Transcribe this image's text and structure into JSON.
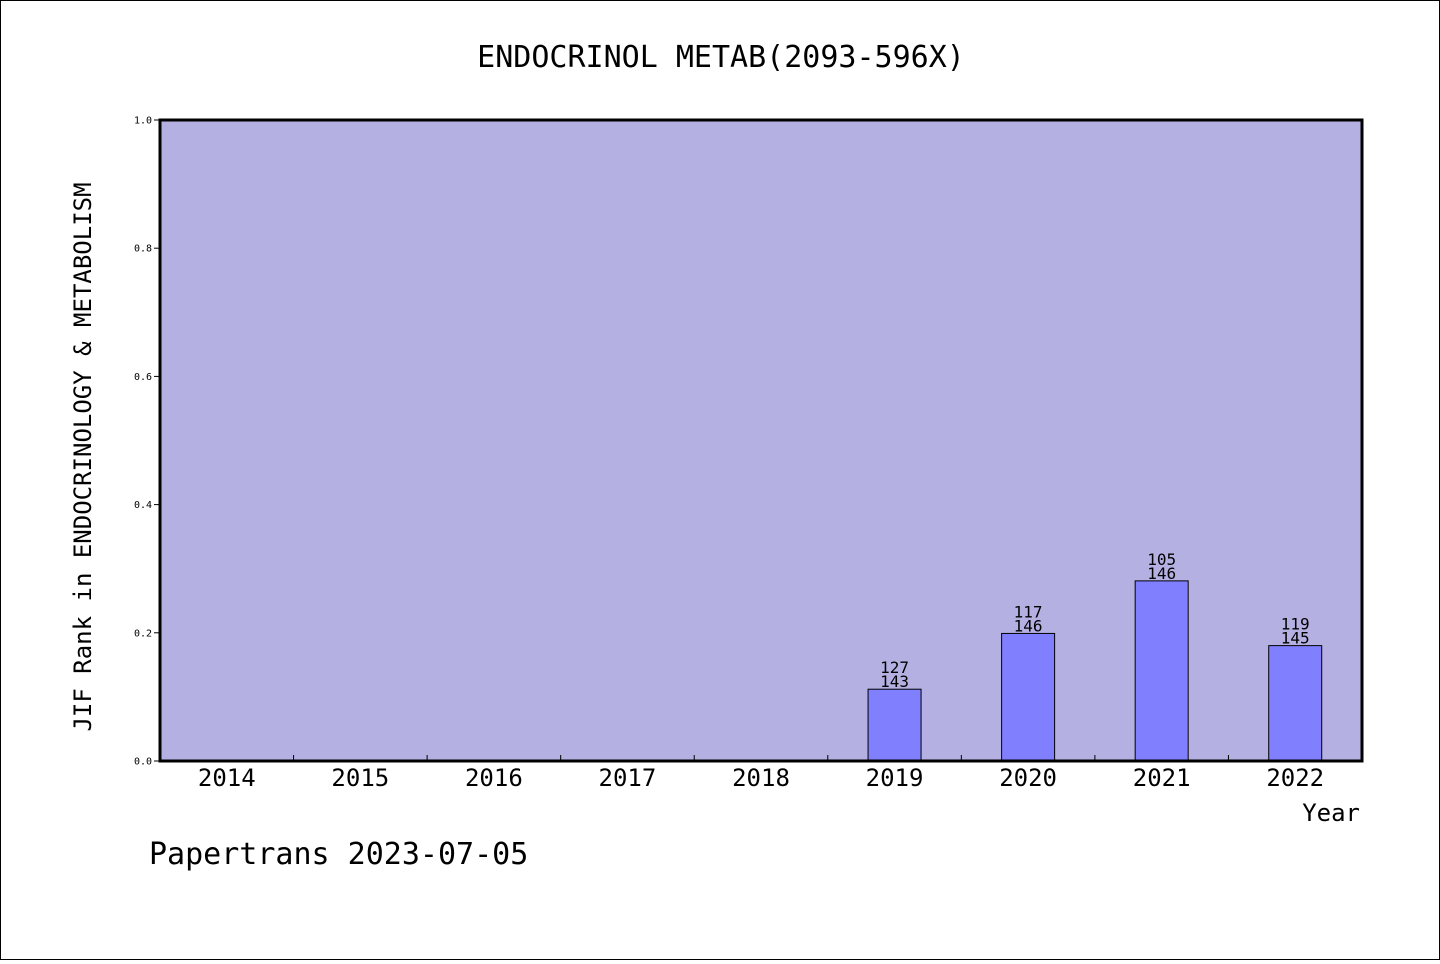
{
  "chart_data": {
    "type": "bar",
    "title": "ENDOCRINOL METAB(2093-596X)",
    "xlabel": "Year",
    "ylabel": "JIF Rank in ENDOCRINOLOGY & METABOLISM",
    "categories": [
      "2014",
      "2015",
      "2016",
      "2017",
      "2018",
      "2019",
      "2020",
      "2021",
      "2022"
    ],
    "values": [
      null,
      null,
      null,
      null,
      null,
      0.112,
      0.199,
      0.281,
      0.18
    ],
    "bar_labels": [
      null,
      null,
      null,
      null,
      null,
      {
        "rank": "127",
        "total": "143"
      },
      {
        "rank": "117",
        "total": "146"
      },
      {
        "rank": "105",
        "total": "146"
      },
      {
        "rank": "119",
        "total": "145"
      }
    ],
    "ylim": [
      0,
      1.0
    ],
    "yticks": [
      "0.0",
      "0.2",
      "0.4",
      "0.6",
      "0.8",
      "1.0"
    ],
    "ytick_values": [
      0,
      0.2,
      0.4,
      0.6,
      0.8,
      1.0
    ],
    "grid": false,
    "legend": "none",
    "colors": {
      "plot_background": "#b5b0e2",
      "bar_fill": "#8080ff",
      "bar_stroke": "#000000",
      "axis": "#000000"
    }
  },
  "footer": {
    "text": "Papertrans 2023-07-05"
  }
}
